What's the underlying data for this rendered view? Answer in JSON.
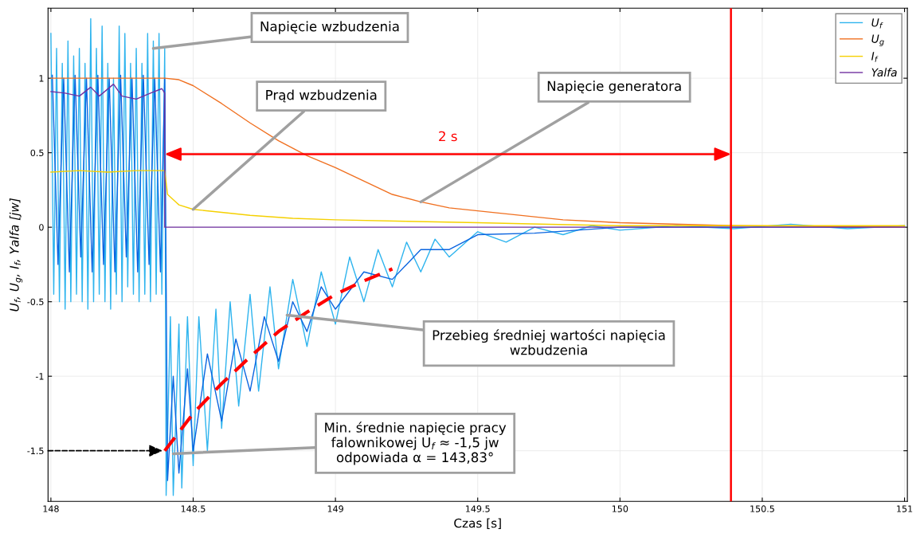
{
  "chart_data": {
    "type": "line",
    "xlabel": "Czas [s]",
    "ylabel": "U$_{f}$, U$_{g}$, I$_{f}$, Yalfa [jw]",
    "xlim": [
      147.99,
      151.01
    ],
    "ylim": [
      -1.84,
      1.47
    ],
    "xticks": [
      148,
      148.5,
      149,
      149.5,
      150,
      150.5,
      151
    ],
    "yticks": [
      -1.5,
      -1,
      -0.5,
      0,
      0.5,
      1
    ],
    "grid": true,
    "legend": "top right",
    "series": [
      {
        "name": "U$_{f}$",
        "color": "#2eb4ee",
        "x": [
          148.0,
          148.01,
          148.02,
          148.03,
          148.04,
          148.05,
          148.06,
          148.07,
          148.08,
          148.09,
          148.1,
          148.11,
          148.12,
          148.13,
          148.14,
          148.15,
          148.16,
          148.17,
          148.18,
          148.19,
          148.2,
          148.21,
          148.22,
          148.23,
          148.24,
          148.25,
          148.26,
          148.27,
          148.28,
          148.29,
          148.3,
          148.31,
          148.32,
          148.33,
          148.34,
          148.35,
          148.36,
          148.37,
          148.38,
          148.39,
          148.4,
          148.405,
          148.42,
          148.43,
          148.45,
          148.46,
          148.48,
          148.5,
          148.52,
          148.55,
          148.58,
          148.6,
          148.63,
          148.66,
          148.7,
          148.73,
          148.77,
          148.8,
          148.85,
          148.9,
          148.95,
          149.0,
          149.05,
          149.1,
          149.15,
          149.2,
          149.25,
          149.3,
          149.35,
          149.4,
          149.5,
          149.6,
          149.7,
          149.8,
          149.9,
          150.0,
          150.2,
          150.4,
          150.6,
          150.8,
          151.0
        ],
        "values": [
          1.3,
          -0.45,
          1.2,
          -0.5,
          1.1,
          -0.55,
          1.25,
          -0.5,
          1.15,
          -0.45,
          1.2,
          -0.5,
          1.1,
          -0.55,
          1.4,
          -0.5,
          1.2,
          -0.45,
          1.35,
          -0.5,
          1.1,
          -0.55,
          1.0,
          -0.45,
          1.35,
          -0.5,
          1.3,
          -0.4,
          1.1,
          -0.45,
          1.2,
          -0.5,
          1.1,
          -0.45,
          1.3,
          -0.5,
          1.25,
          -0.45,
          1.3,
          -0.45,
          1.2,
          -1.8,
          -0.6,
          -1.8,
          -0.65,
          -1.75,
          -0.6,
          -1.6,
          -0.6,
          -1.5,
          -0.55,
          -1.35,
          -0.5,
          -1.2,
          -0.45,
          -1.1,
          -0.4,
          -0.95,
          -0.35,
          -0.8,
          -0.3,
          -0.65,
          -0.2,
          -0.5,
          -0.15,
          -0.4,
          -0.1,
          -0.3,
          -0.08,
          -0.2,
          -0.03,
          -0.1,
          0.0,
          -0.05,
          0.01,
          -0.02,
          0.01,
          -0.01,
          0.02,
          -0.01,
          0.01
        ]
      },
      {
        "color": "#0a64e0",
        "x": [
          148.005,
          148.025,
          148.045,
          148.065,
          148.085,
          148.105,
          148.125,
          148.145,
          148.165,
          148.185,
          148.205,
          148.225,
          148.245,
          148.265,
          148.285,
          148.305,
          148.325,
          148.345,
          148.365,
          148.385,
          148.4,
          148.41,
          148.43,
          148.45,
          148.48,
          148.5,
          148.55,
          148.6,
          148.65,
          148.7,
          148.75,
          148.8,
          148.85,
          148.9,
          148.95,
          149.0,
          149.1,
          149.2,
          149.3,
          149.4,
          149.5,
          149.7,
          150.0,
          151.0
        ],
        "values": [
          1.02,
          -0.25,
          1.0,
          -0.3,
          1.02,
          -0.2,
          1.0,
          -0.3,
          1.02,
          -0.25,
          1.0,
          -0.3,
          1.02,
          -0.2,
          1.0,
          -0.3,
          1.02,
          -0.25,
          1.0,
          -0.3,
          1.0,
          -1.7,
          -1.0,
          -1.65,
          -0.95,
          -1.5,
          -0.85,
          -1.3,
          -0.75,
          -1.1,
          -0.6,
          -0.9,
          -0.5,
          -0.7,
          -0.4,
          -0.55,
          -0.3,
          -0.35,
          -0.15,
          -0.15,
          -0.05,
          -0.04,
          0.0,
          0.0
        ]
      },
      {
        "name": "U$_{g}$",
        "color": "#f07020",
        "x": [
          148.0,
          148.4,
          148.45,
          148.5,
          148.6,
          148.7,
          148.8,
          148.9,
          149.0,
          149.2,
          149.3,
          149.4,
          149.6,
          149.8,
          150.0,
          150.4,
          151.0
        ],
        "values": [
          1.0,
          1.0,
          0.99,
          0.95,
          0.83,
          0.7,
          0.58,
          0.48,
          0.4,
          0.22,
          0.17,
          0.13,
          0.09,
          0.05,
          0.03,
          0.01,
          0.0
        ]
      },
      {
        "name": "I$_{f}$",
        "color": "#f5d000",
        "x": [
          148.0,
          148.1,
          148.2,
          148.3,
          148.4,
          148.41,
          148.45,
          148.5,
          148.6,
          148.7,
          148.85,
          149.0,
          149.25,
          149.5,
          149.75,
          150.0,
          150.5,
          151.0
        ],
        "values": [
          0.37,
          0.38,
          0.37,
          0.38,
          0.38,
          0.22,
          0.15,
          0.12,
          0.1,
          0.08,
          0.06,
          0.05,
          0.04,
          0.03,
          0.02,
          0.01,
          0.01,
          0.01
        ]
      },
      {
        "name": "Yalfa",
        "color": "#7030a0",
        "x": [
          148.0,
          148.05,
          148.1,
          148.14,
          148.17,
          148.22,
          148.25,
          148.3,
          148.35,
          148.39,
          148.4,
          148.4,
          151.0
        ],
        "values": [
          0.91,
          0.9,
          0.88,
          0.94,
          0.88,
          0.96,
          0.88,
          0.86,
          0.9,
          0.93,
          0.9,
          0.0,
          0.0
        ]
      },
      {
        "color": "#ff0000",
        "line_style": "dashed",
        "x": [
          148.4,
          148.5,
          148.6,
          148.7,
          148.8,
          148.9,
          149.0,
          149.1,
          149.2
        ],
        "values": [
          -1.5,
          -1.25,
          -1.05,
          -0.87,
          -0.7,
          -0.57,
          -0.45,
          -0.36,
          -0.28
        ]
      }
    ],
    "ref_lines": [
      {
        "axis": "x",
        "value": 150.39,
        "color": "#ff0000"
      }
    ],
    "annotations": [
      {
        "text": "Napięcie wzbudzenia",
        "x": 148.36,
        "y": 1.2
      },
      {
        "text": "Prąd wzbudzenia",
        "x": 148.5,
        "y": 0.12
      },
      {
        "text": "Napięcie generatora",
        "x": 149.3,
        "y": 0.17
      },
      {
        "text": "Przebieg średniej wartości napięcia\nwzbudzenia",
        "x": 148.83,
        "y": -0.59
      },
      {
        "text": "Min. średnie napięcie pracy\nfalownikowej U$_{f}$ ≈ -1,5 jw\nodpowiada α = 143,83°",
        "x": 148.43,
        "y": -1.52
      },
      "2 s"
    ]
  }
}
